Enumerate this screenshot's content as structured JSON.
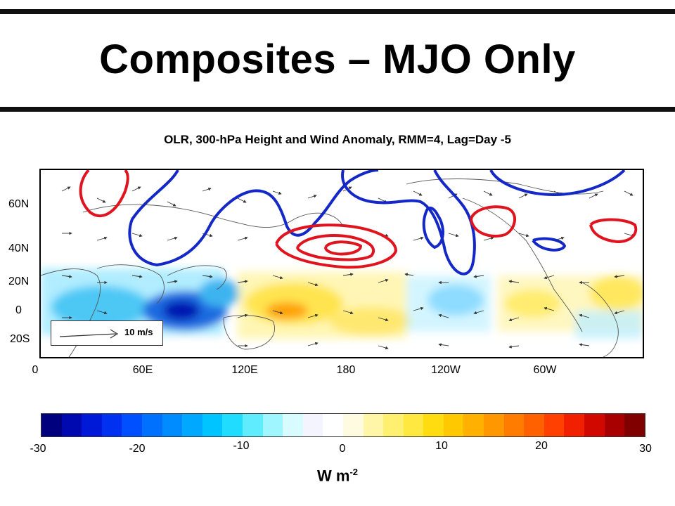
{
  "slide": {
    "title": "Composites – MJO Only",
    "subtitle": "OLR, 300-hPa Height and Wind Anomaly, RMM=4, Lag=Day -5"
  },
  "map": {
    "lat_labels": [
      "60N",
      "40N",
      "20N",
      "0",
      "20S"
    ],
    "lon_labels": [
      "0",
      "60E",
      "120E",
      "180",
      "120W",
      "60W"
    ],
    "reference_vector_label": "10 m/s",
    "contour_colors": {
      "positive_height": "#e0141e",
      "negative_height": "#1428c8"
    }
  },
  "colorbar": {
    "ticks": [
      "-30",
      "-20",
      "-10",
      "0",
      "10",
      "20",
      "30"
    ],
    "units": "W m",
    "units_exponent": "-2",
    "colors": [
      "#00007f",
      "#0008b0",
      "#0018d8",
      "#0030f0",
      "#0050ff",
      "#0070ff",
      "#008cff",
      "#00a8ff",
      "#00c4ff",
      "#20dcff",
      "#60ecff",
      "#a0f6ff",
      "#d8fbff",
      "#f4f4ff",
      "#ffffff",
      "#fffbe0",
      "#fff6a8",
      "#fff070",
      "#ffe840",
      "#ffdc10",
      "#ffc800",
      "#ffb000",
      "#ff9800",
      "#ff7c00",
      "#ff6000",
      "#ff4000",
      "#f02000",
      "#d00800",
      "#a80000",
      "#800000"
    ]
  }
}
